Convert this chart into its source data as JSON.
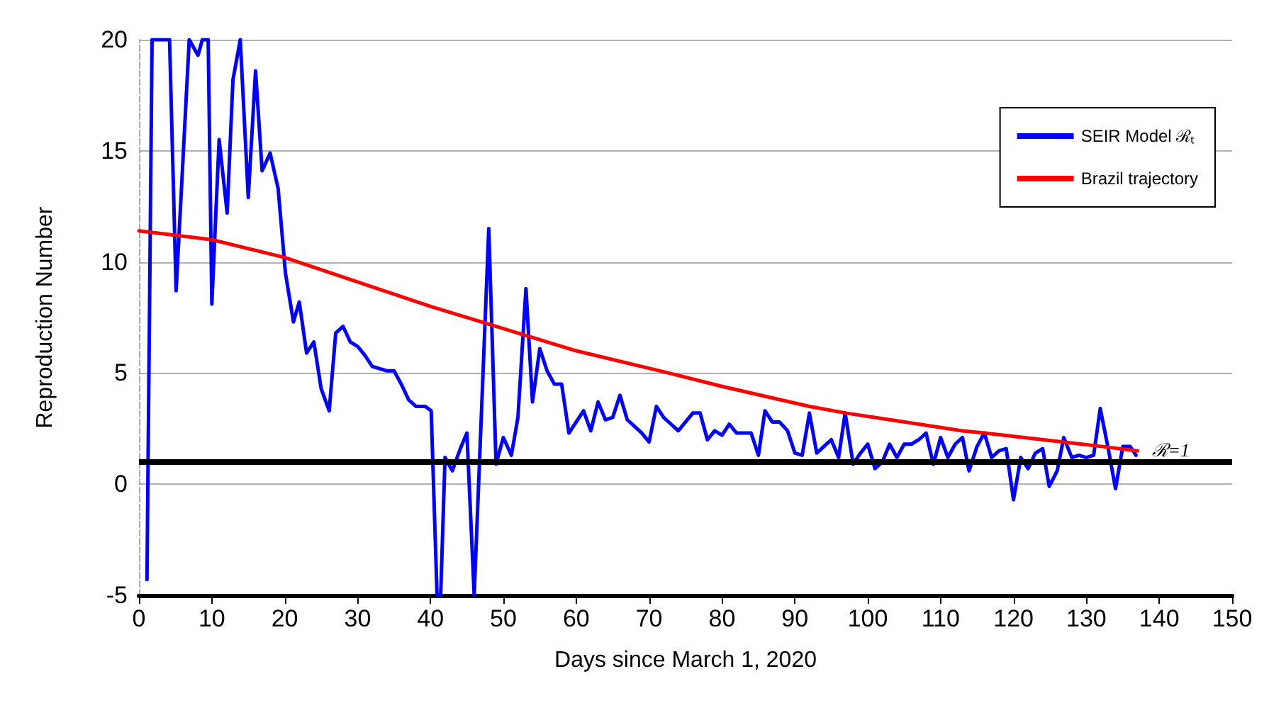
{
  "chart_data": {
    "type": "line",
    "xlabel": "Days since March 1, 2020",
    "ylabel": "Reproduction Number",
    "xlim": [
      0,
      150
    ],
    "xticks": [
      0,
      10,
      20,
      30,
      40,
      50,
      60,
      70,
      80,
      90,
      100,
      110,
      120,
      130,
      140,
      150
    ],
    "ylim": [
      -5,
      20
    ],
    "yticks": [
      -5,
      0,
      5,
      10,
      15,
      20
    ],
    "grid": "y",
    "legend": "top right",
    "marker": "none",
    "line_style": "solid",
    "ref_lines": [
      {
        "axis": "y",
        "value": 1,
        "label": "ℛ=1",
        "color": "#000000"
      }
    ],
    "series": [
      {
        "name": "SEIR Model ℛₜ",
        "color": "#0000ff",
        "x": [
          1.1,
          1.8,
          4.2,
          5.1,
          6.9,
          8.1,
          8.7,
          9.5,
          10,
          11,
          12.1,
          12.9,
          13.9,
          15,
          16,
          16.9,
          18,
          19.1,
          20.1,
          21.2,
          22,
          23,
          24,
          25,
          26.1,
          27,
          28,
          29,
          30,
          31,
          32,
          33,
          34,
          35,
          36,
          37,
          38,
          39.3,
          40.1,
          40.9,
          41.4,
          42,
          43,
          44.1,
          45,
          46,
          48,
          49,
          50,
          51.1,
          52,
          53.1,
          54,
          55,
          56,
          57,
          58,
          59,
          60,
          61,
          62,
          63,
          64,
          65,
          66,
          67,
          68,
          69,
          70,
          71,
          72,
          73,
          74,
          75,
          76,
          77,
          78,
          79,
          80,
          81,
          82,
          83,
          84,
          85,
          85.9,
          86.9,
          87.9,
          89,
          90,
          91,
          92,
          93,
          94,
          95,
          96,
          96.9,
          98,
          99,
          100,
          101,
          102,
          103,
          104,
          105,
          106,
          107,
          108,
          109,
          110,
          111,
          112,
          113,
          113.9,
          115,
          116,
          117,
          118,
          119,
          120,
          121,
          122,
          123,
          124,
          124.9,
          126,
          126.9,
          128,
          129,
          130,
          131,
          131.9,
          133,
          134,
          135,
          136,
          136.8
        ],
        "values": [
          -4.3,
          20,
          20,
          8.7,
          20,
          19.3,
          20,
          20,
          8.1,
          15.5,
          12.2,
          18.2,
          20,
          12.9,
          18.6,
          14.1,
          14.9,
          13.3,
          9.5,
          7.3,
          8.2,
          5.9,
          6.4,
          4.3,
          3.3,
          6.8,
          7.1,
          6.4,
          6.2,
          5.8,
          5.3,
          5.2,
          5.1,
          5.1,
          4.5,
          3.8,
          3.5,
          3.5,
          3.3,
          -5,
          -5,
          1.2,
          0.6,
          1.6,
          2.3,
          -5,
          11.5,
          0.9,
          2.1,
          1.3,
          3.0,
          8.8,
          3.7,
          6.1,
          5.1,
          4.5,
          4.5,
          2.3,
          2.8,
          3.3,
          2.4,
          3.7,
          2.9,
          3.0,
          4.0,
          2.9,
          2.6,
          2.3,
          1.9,
          3.5,
          3.0,
          2.7,
          2.4,
          2.8,
          3.2,
          3.2,
          2.0,
          2.4,
          2.2,
          2.7,
          2.3,
          2.3,
          2.3,
          1.3,
          3.3,
          2.8,
          2.8,
          2.4,
          1.4,
          1.3,
          3.2,
          1.4,
          1.7,
          2.0,
          1.2,
          3.2,
          0.9,
          1.4,
          1.8,
          0.7,
          1.0,
          1.8,
          1.2,
          1.8,
          1.8,
          2.0,
          2.3,
          0.9,
          2.1,
          1.2,
          1.8,
          2.1,
          0.6,
          1.7,
          2.3,
          1.2,
          1.5,
          1.6,
          -0.7,
          1.2,
          0.7,
          1.4,
          1.6,
          -0.1,
          0.6,
          2.1,
          1.2,
          1.3,
          1.2,
          1.3,
          3.4,
          1.6,
          -0.2,
          1.7,
          1.7,
          1.3
        ]
      },
      {
        "name": "Brazil trajectory",
        "color": "#ff0000",
        "x": [
          0,
          10,
          20,
          30,
          40,
          48,
          53,
          60,
          72.7,
          80,
          92,
          97,
          113,
          116,
          132,
          137
        ],
        "values": [
          11.4,
          11.0,
          10.2,
          9.1,
          8.0,
          7.2,
          6.7,
          6.0,
          5.0,
          4.4,
          3.5,
          3.2,
          2.4,
          2.3,
          1.7,
          1.5
        ]
      }
    ]
  }
}
